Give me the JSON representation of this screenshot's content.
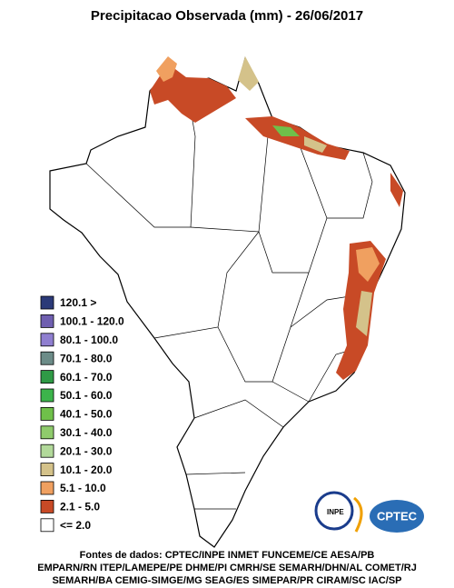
{
  "title": "Precipitacao Observada (mm) - 26/06/2017",
  "legend": [
    {
      "label": "120.1 >",
      "color": "#2b3a78"
    },
    {
      "label": "100.1 - 120.0",
      "color": "#6f5fb0"
    },
    {
      "label": "80.1 - 100.0",
      "color": "#8f7fd0"
    },
    {
      "label": "70.1 - 80.0",
      "color": "#6c8c88"
    },
    {
      "label": "60.1 - 70.0",
      "color": "#2f9a46"
    },
    {
      "label": "50.1 - 60.0",
      "color": "#3cb44b"
    },
    {
      "label": "40.1 - 50.0",
      "color": "#6fc04a"
    },
    {
      "label": "30.1 - 40.0",
      "color": "#8fcb6c"
    },
    {
      "label": "20.1 - 30.0",
      "color": "#b2d99a"
    },
    {
      "label": "10.1 - 20.0",
      "color": "#d4c28a"
    },
    {
      "label": "5.1 - 10.0",
      "color": "#f0a060"
    },
    {
      "label": "2.1 - 5.0",
      "color": "#c84a26"
    },
    {
      "label": "<= 2.0",
      "color": "#ffffff"
    }
  ],
  "logos": {
    "inpe": "INPE",
    "cptec": "CPTEC"
  },
  "sources": [
    "Fontes de dados: CPTEC/INPE INMET FUNCEME/CE AESA/PB",
    "EMPARN/RN ITEP/LAMEPE/PE DHME/PI CMRH/SE SEMARH/DHN/AL COMET/RJ",
    "SEMARH/BA CEMIG-SIMGE/MG SEAG/ES SIMEPAR/PR CIRAM/SC IAC/SP"
  ]
}
